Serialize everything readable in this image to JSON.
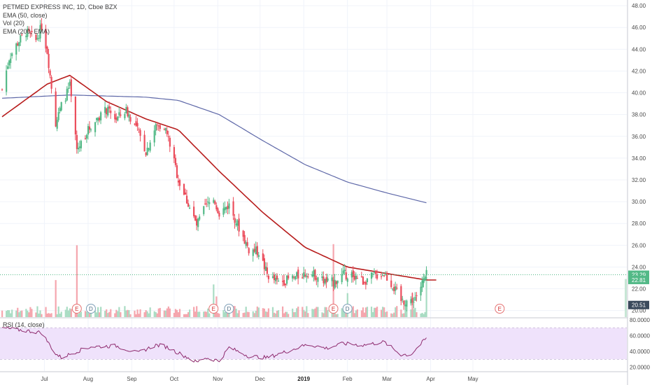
{
  "legend": {
    "title": "PETMED EXPRESS INC, 1D, Cboe BZX",
    "ema50": "EMA (50, close)",
    "vol": "Vol (20)",
    "ema200": "EMA (200, EMA)",
    "rsi": "RSI (14, close)"
  },
  "colors": {
    "up": "#53b987",
    "down": "#eb4d5c",
    "vol_up": "#a9dcc3",
    "vol_down": "#f5a6ae",
    "ema50": "#b71c1c",
    "ema200": "#5e68a8",
    "rsi_line": "#8e2a6e",
    "rsi_band": "#efe2fb",
    "last_price_line": "#53b987",
    "price_tag": "#53b987",
    "low_tag": "#3b4a5c",
    "gold_tag": "#c9a227"
  },
  "chart_data": {
    "type": "candlestick",
    "title": "PETMED EXPRESS INC, 1D, Cboe BZX",
    "price_axis": {
      "ticks": [
        "48.00",
        "46.00",
        "44.00",
        "42.00",
        "40.00",
        "38.00",
        "36.00",
        "34.00",
        "32.00",
        "30.00",
        "28.00",
        "26.00",
        "24.00",
        "22.00",
        "20.00"
      ],
      "range": [
        19.4,
        48.2
      ]
    },
    "price_tags": [
      "23.29",
      "22.81",
      "20.51"
    ],
    "rsi_axis": {
      "ticks": [
        "80.0000",
        "60.0000",
        "40.0000",
        "20.0000"
      ],
      "band": [
        30,
        70
      ],
      "range": [
        15,
        82
      ]
    },
    "x_axis": {
      "ticks": [
        "Jul",
        "Aug",
        "Sep",
        "Oct",
        "Nov",
        "Dec",
        "2019",
        "Feb",
        "Mar",
        "Apr",
        "May"
      ]
    },
    "event_markers": [
      {
        "label": "E",
        "date": "2018-07-24"
      },
      {
        "label": "D",
        "date": "2018-08-03"
      },
      {
        "label": "E",
        "date": "2018-10-29"
      },
      {
        "label": "D",
        "date": "2018-11-09"
      },
      {
        "label": "E",
        "date": "2019-01-22"
      },
      {
        "label": "D",
        "date": "2019-02-01"
      },
      {
        "label": "E",
        "date": "2019-05-20"
      }
    ],
    "ohlc_anchors": [
      [
        "2018-06-01",
        40.3
      ],
      [
        "2018-06-06",
        43.2
      ],
      [
        "2018-06-12",
        44.6
      ],
      [
        "2018-06-18",
        45.6
      ],
      [
        "2018-06-25",
        44.8
      ],
      [
        "2018-06-29",
        46.1
      ],
      [
        "2018-07-03",
        43.8
      ],
      [
        "2018-07-09",
        37.2
      ],
      [
        "2018-07-13",
        38.8
      ],
      [
        "2018-07-19",
        40.6
      ],
      [
        "2018-07-24",
        34.7
      ],
      [
        "2018-07-31",
        36.4
      ],
      [
        "2018-08-08",
        37.8
      ],
      [
        "2018-08-14",
        38.4
      ],
      [
        "2018-08-21",
        37.6
      ],
      [
        "2018-08-28",
        38.4
      ],
      [
        "2018-09-05",
        36.6
      ],
      [
        "2018-09-11",
        34.6
      ],
      [
        "2018-09-18",
        36.9
      ],
      [
        "2018-09-24",
        37.0
      ],
      [
        "2018-09-28",
        35.3
      ],
      [
        "2018-10-04",
        32.0
      ],
      [
        "2018-10-11",
        29.8
      ],
      [
        "2018-10-17",
        27.8
      ],
      [
        "2018-10-23",
        29.5
      ],
      [
        "2018-10-29",
        30.2
      ],
      [
        "2018-11-02",
        29.0
      ],
      [
        "2018-11-09",
        29.7
      ],
      [
        "2018-11-16",
        27.6
      ],
      [
        "2018-11-23",
        25.6
      ],
      [
        "2018-11-30",
        25.4
      ],
      [
        "2018-12-06",
        23.3
      ],
      [
        "2018-12-13",
        22.6
      ],
      [
        "2018-12-20",
        22.8
      ],
      [
        "2018-12-27",
        23.1
      ],
      [
        "2019-01-04",
        23.5
      ],
      [
        "2019-01-10",
        23.2
      ],
      [
        "2019-01-17",
        22.6
      ],
      [
        "2019-01-22",
        22.6
      ],
      [
        "2019-01-29",
        23.3
      ],
      [
        "2019-02-05",
        23.3
      ],
      [
        "2019-02-12",
        22.7
      ],
      [
        "2019-02-20",
        23.2
      ],
      [
        "2019-02-27",
        23.4
      ],
      [
        "2019-03-05",
        22.3
      ],
      [
        "2019-03-11",
        20.9
      ],
      [
        "2019-03-18",
        20.9
      ],
      [
        "2019-03-22",
        21.4
      ],
      [
        "2019-03-26",
        22.5
      ],
      [
        "2019-03-29",
        23.29
      ]
    ],
    "ema50_anchors": [
      [
        "2018-06-01",
        37.8
      ],
      [
        "2018-07-03",
        40.8
      ],
      [
        "2018-07-19",
        41.6
      ],
      [
        "2018-08-14",
        39.2
      ],
      [
        "2018-09-11",
        37.6
      ],
      [
        "2018-10-04",
        36.6
      ],
      [
        "2018-11-02",
        32.8
      ],
      [
        "2018-12-03",
        29.0
      ],
      [
        "2019-01-02",
        25.8
      ],
      [
        "2019-02-01",
        24.0
      ],
      [
        "2019-03-01",
        23.4
      ],
      [
        "2019-03-29",
        22.81
      ],
      [
        "2019-04-05",
        22.81
      ]
    ],
    "ema200_anchors": [
      [
        "2018-06-01",
        39.5
      ],
      [
        "2018-07-19",
        39.8
      ],
      [
        "2018-09-11",
        39.6
      ],
      [
        "2018-10-04",
        39.3
      ],
      [
        "2018-11-02",
        38.0
      ],
      [
        "2018-12-03",
        35.6
      ],
      [
        "2019-01-02",
        33.4
      ],
      [
        "2019-02-01",
        31.8
      ],
      [
        "2019-03-01",
        30.8
      ],
      [
        "2019-03-29",
        29.9
      ]
    ],
    "rsi_anchors": [
      [
        "2018-06-01",
        70
      ],
      [
        "2018-06-29",
        64
      ],
      [
        "2018-07-09",
        37
      ],
      [
        "2018-07-13",
        32
      ],
      [
        "2018-07-24",
        40
      ],
      [
        "2018-08-03",
        46
      ],
      [
        "2018-08-21",
        47
      ],
      [
        "2018-09-05",
        38
      ],
      [
        "2018-09-18",
        48
      ],
      [
        "2018-09-24",
        47
      ],
      [
        "2018-10-11",
        32
      ],
      [
        "2018-10-17",
        26
      ],
      [
        "2018-10-23",
        32
      ],
      [
        "2018-11-02",
        28
      ],
      [
        "2018-11-09",
        45
      ],
      [
        "2018-11-23",
        34
      ],
      [
        "2018-12-06",
        32
      ],
      [
        "2018-12-20",
        40
      ],
      [
        "2019-01-04",
        49
      ],
      [
        "2019-01-17",
        44
      ],
      [
        "2019-01-29",
        50
      ],
      [
        "2019-02-12",
        48
      ],
      [
        "2019-02-27",
        52
      ],
      [
        "2019-03-11",
        36
      ],
      [
        "2019-03-18",
        36
      ],
      [
        "2019-03-29",
        57
      ]
    ],
    "volume_spikes": [
      [
        "2018-07-24",
        26.0
      ],
      [
        "2018-07-09",
        22.8
      ],
      [
        "2018-10-29",
        22.4
      ],
      [
        "2018-10-31",
        21.3
      ],
      [
        "2019-01-22",
        26.1
      ],
      [
        "2019-02-01",
        21.6
      ],
      [
        "2019-03-19",
        21.6
      ],
      [
        "2019-03-29",
        23.1
      ]
    ]
  }
}
